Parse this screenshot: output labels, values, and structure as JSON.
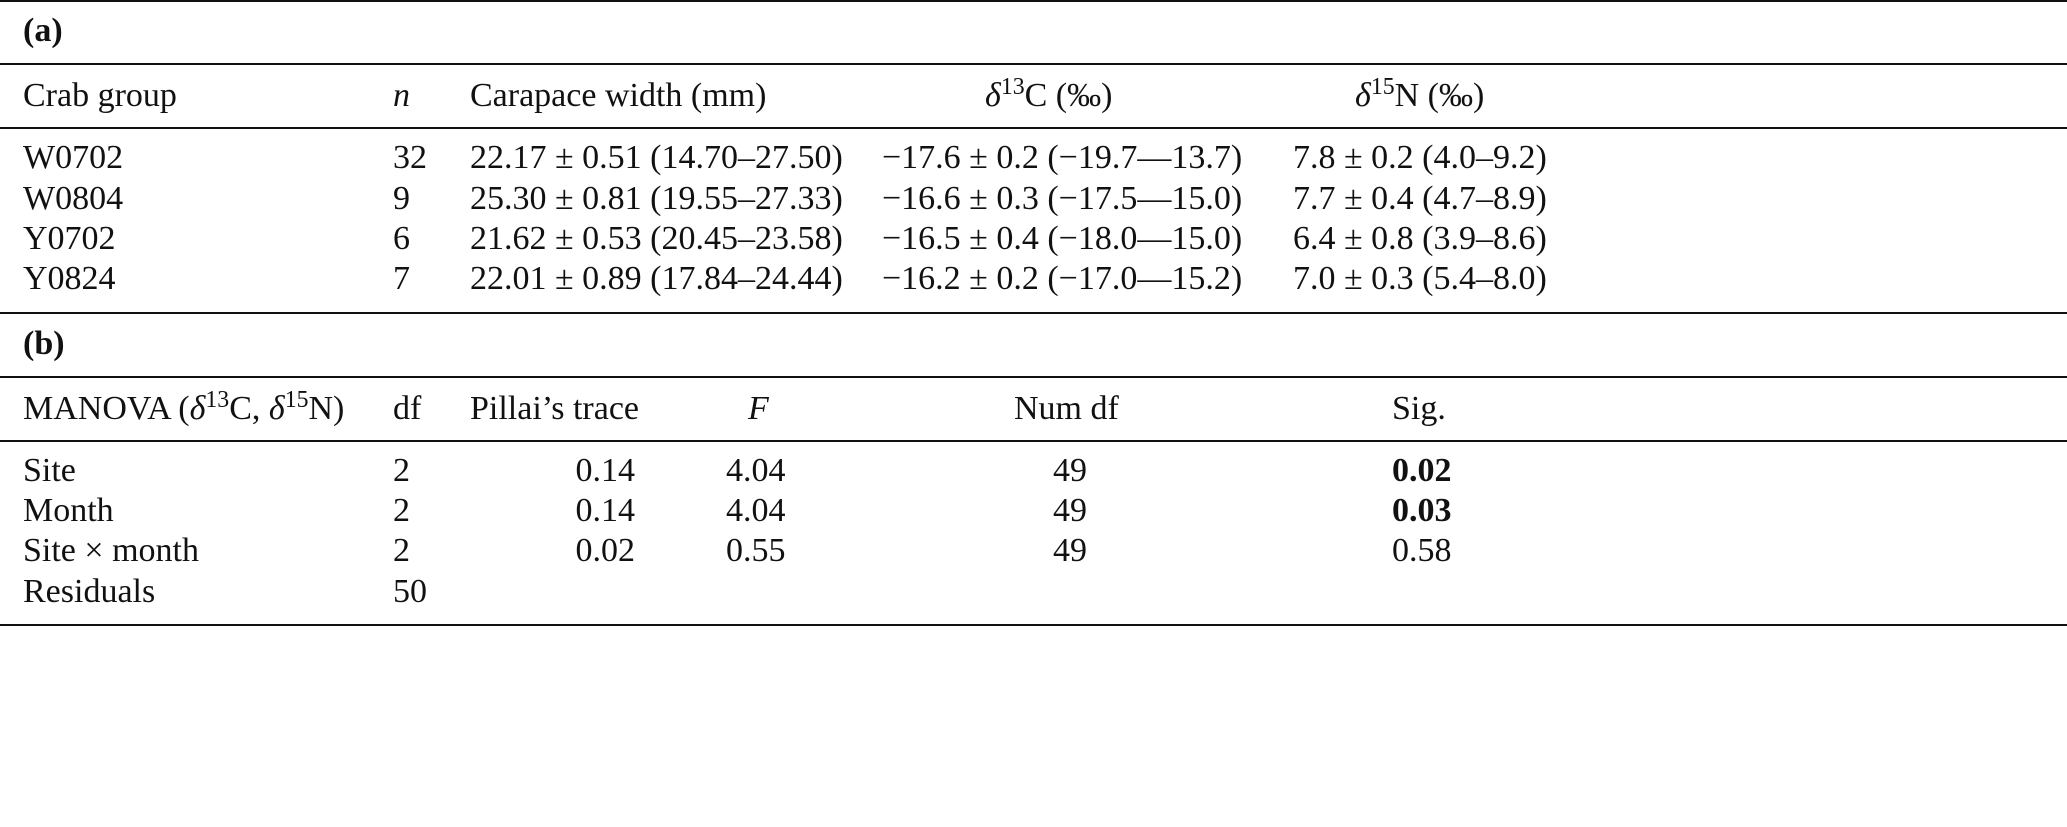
{
  "part_a": {
    "label": "(a)",
    "headers": {
      "group": "Crab group",
      "n": "n",
      "cw": "Carapace width (mm)",
      "d13c_delta": "δ",
      "d13c_sup": "13",
      "d13c_rest": "C (‰)",
      "d15n_delta": "δ",
      "d15n_sup": "15",
      "d15n_rest": "N (‰)"
    },
    "rows": [
      {
        "group": "W0702",
        "n": "32",
        "cw": "22.17 ± 0.51 (14.70–27.50)",
        "d13c": "−17.6 ± 0.2 (−19.7—13.7)",
        "d15n": "7.8 ± 0.2 (4.0–9.2)"
      },
      {
        "group": "W0804",
        "n": "9",
        "cw": "25.30 ± 0.81 (19.55–27.33)",
        "d13c": "−16.6 ± 0.3 (−17.5—15.0)",
        "d15n": "7.7 ± 0.4 (4.7–8.9)"
      },
      {
        "group": "Y0702",
        "n": "6",
        "cw": "21.62 ± 0.53 (20.45–23.58)",
        "d13c": "−16.5 ± 0.4 (−18.0—15.0)",
        "d15n": "6.4 ± 0.8 (3.9–8.6)"
      },
      {
        "group": "Y0824",
        "n": "7",
        "cw": "22.01 ± 0.89 (17.84–24.44)",
        "d13c": "−16.2 ± 0.2 (−17.0—15.2)",
        "d15n": "7.0 ± 0.3 (5.4–8.0)"
      }
    ]
  },
  "part_b": {
    "label": "(b)",
    "headers": {
      "manova_pre": "MANOVA (",
      "manova_d1": "δ",
      "manova_s1": "13",
      "manova_mid": "C, ",
      "manova_d2": "δ",
      "manova_s2": "15",
      "manova_post": "N)",
      "df": "df",
      "pillai": "Pillai’s trace",
      "f": "F",
      "numdf": "Num df",
      "sig": "Sig."
    },
    "rows": [
      {
        "factor": "Site",
        "df": "2",
        "pillai": "0.14",
        "f": "4.04",
        "numdf": "49",
        "sig": "0.02",
        "sig_bold": true
      },
      {
        "factor": "Month",
        "df": "2",
        "pillai": "0.14",
        "f": "4.04",
        "numdf": "49",
        "sig": "0.03",
        "sig_bold": true
      },
      {
        "factor": "Site × month",
        "df": "2",
        "pillai": "0.02",
        "f": "0.55",
        "numdf": "49",
        "sig": "0.58",
        "sig_bold": false
      },
      {
        "factor": "Residuals",
        "df": "50",
        "pillai": "",
        "f": "",
        "numdf": "",
        "sig": "",
        "sig_bold": false
      }
    ]
  }
}
